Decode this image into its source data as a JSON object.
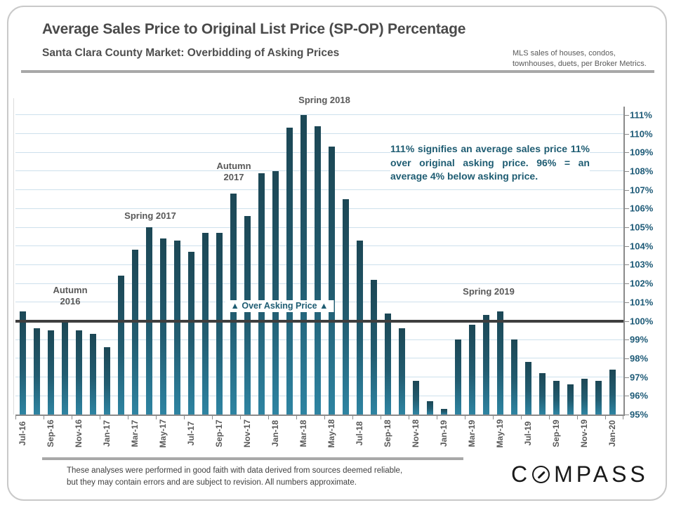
{
  "header": {
    "title": "Average Sales Price to Original List Price (SP-OP) Percentage",
    "subtitle": "Santa Clara County Market: Overbidding of Asking Prices",
    "source_note_line1": "MLS sales of houses, condos,",
    "source_note_line2": "townhouses, duets, per Broker Metrics."
  },
  "chart_data": {
    "type": "bar",
    "title": "Average Sales Price to Original List Price (SP-OP) Percentage",
    "subtitle": "Santa Clara County Market: Overbidding of Asking Prices",
    "ylim": [
      95,
      111
    ],
    "grid": true,
    "unit": "%",
    "categories": [
      "Jul-16",
      "Aug-16",
      "Sep-16",
      "Oct-16",
      "Nov-16",
      "Dec-16",
      "Jan-17",
      "Feb-17",
      "Mar-17",
      "Apr-17",
      "May-17",
      "Jun-17",
      "Jul-17",
      "Aug-17",
      "Sep-17",
      "Oct-17",
      "Nov-17",
      "Dec-17",
      "Jan-18",
      "Feb-18",
      "Mar-18",
      "Apr-18",
      "May-18",
      "Jun-18",
      "Jul-18",
      "Aug-18",
      "Sep-18",
      "Oct-18",
      "Nov-18",
      "Dec-18",
      "Jan-19",
      "Feb-19",
      "Mar-19",
      "Apr-19",
      "May-19",
      "Jun-19",
      "Jul-19",
      "Aug-19",
      "Sep-19",
      "Oct-19",
      "Nov-19",
      "Dec-19",
      "Jan-20"
    ],
    "values": [
      100.5,
      99.6,
      99.5,
      99.9,
      99.5,
      99.3,
      98.6,
      102.4,
      103.8,
      105.0,
      104.4,
      104.3,
      103.7,
      104.7,
      104.7,
      106.8,
      105.6,
      107.9,
      108.0,
      110.3,
      111.0,
      110.4,
      109.3,
      106.5,
      104.3,
      102.2,
      100.4,
      99.6,
      96.8,
      95.7,
      95.3,
      99.0,
      99.8,
      100.3,
      100.5,
      99.0,
      97.8,
      97.2,
      96.8,
      96.6,
      96.9,
      96.8,
      97.4
    ],
    "x_tick_labels": [
      "Jul-16",
      "Sep-16",
      "Nov-16",
      "Jan-17",
      "Mar-17",
      "May-17",
      "Jul-17",
      "Sep-17",
      "Nov-17",
      "Jan-18",
      "Mar-18",
      "May-18",
      "Jul-18",
      "Sep-18",
      "Nov-18",
      "Jan-19",
      "Mar-19",
      "May-19",
      "Jul-19",
      "Sep-19",
      "Nov-19",
      "Jan-20"
    ],
    "y_tick_labels": [
      "111%",
      "110%",
      "109%",
      "108%",
      "107%",
      "106%",
      "105%",
      "104%",
      "103%",
      "102%",
      "101%",
      "100%",
      "99%",
      "98%",
      "97%",
      "96%",
      "95%"
    ],
    "reference_line": {
      "value": 100,
      "label": "100%",
      "color": "#3f3f3f"
    },
    "legend": "none",
    "bar_color_top": "#1c4755",
    "bar_color_bottom": "#2e84a2",
    "grid_color": "#cde0ec",
    "y_label_color": "#1d5a77",
    "x_label_color": "#595959",
    "annotations": [
      {
        "text": "Autumn 2016"
      },
      {
        "text": "Spring 2017"
      },
      {
        "text": "Autumn 2017"
      },
      {
        "text": "Spring 2018"
      },
      {
        "text": "Spring 2019"
      },
      {
        "text": "▲ Over Asking Price ▲"
      },
      {
        "text": "111% signifies an average sales price 11% over original asking price. 96% = an average 4% below asking price."
      }
    ]
  },
  "footer": {
    "disclaimer_line1": "These analyses were performed in good faith with data derived from sources deemed reliable,",
    "disclaimer_line2": "but they may contain errors and are subject to revision. All numbers approximate.",
    "logo_prefix": "C",
    "logo_suffix": "MPASS"
  }
}
